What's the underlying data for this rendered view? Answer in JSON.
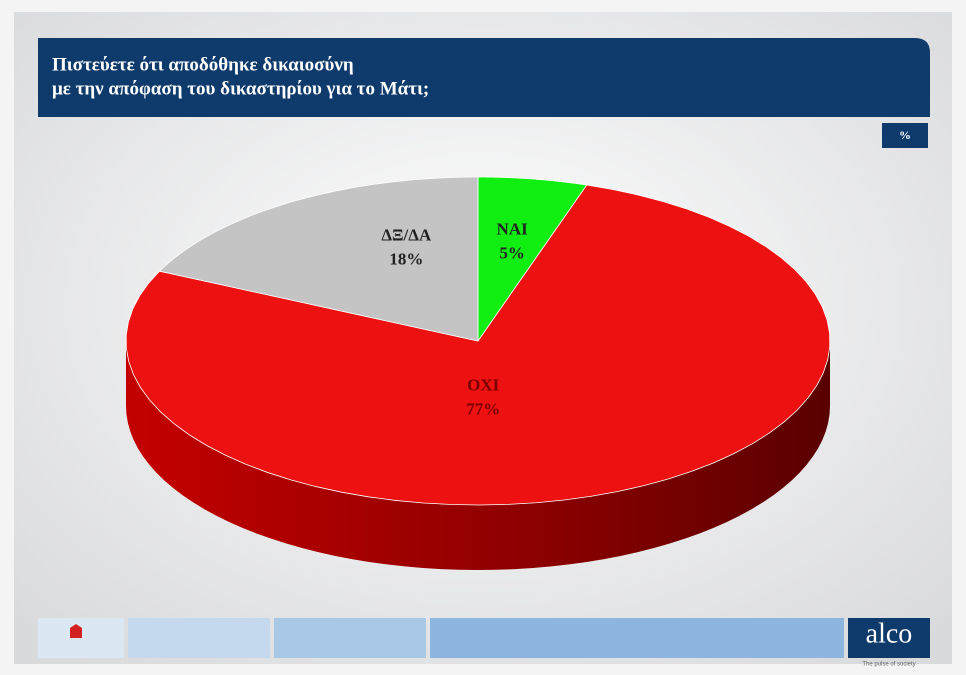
{
  "chart_data": {
    "type": "pie",
    "title": [
      "Πιστεύετε ότι αποδόθηκε δικαιοσύνη",
      "με την απόφαση του δικαστηρίου για το Μάτι;"
    ],
    "unit": "%",
    "categories": [
      "ΝΑΙ",
      "ΟΧΙ",
      "ΔΞ/ΔΑ"
    ],
    "values": [
      5,
      77,
      18
    ],
    "value_labels": [
      "5%",
      "77%",
      "18%"
    ],
    "colors": [
      "#11ee11",
      "#ee1111",
      "#c4c4c4"
    ],
    "footer": {
      "brand": "alco",
      "tagline": "The pulse of society"
    }
  }
}
